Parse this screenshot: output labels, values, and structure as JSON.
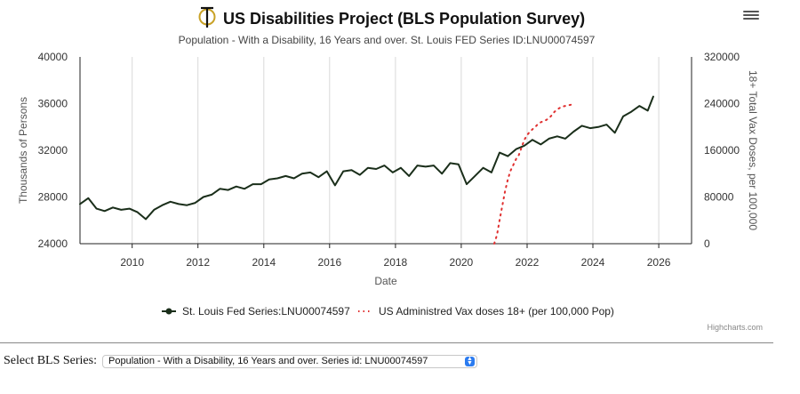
{
  "chart_data": {
    "type": "line",
    "title": "US Disabilities Project (BLS Population Survey)",
    "subtitle": "Population - With a Disability, 16 Years and over.  St. Louis FED Series ID:LNU00074597",
    "xlabel": "Date",
    "ylabel_left": "Thousands of Persons",
    "ylabel_right": "18+ Total Vax Doses, per 100,000",
    "xlim": [
      "2008-06-01",
      "2026-12-31"
    ],
    "ylim_left": [
      24000,
      40000
    ],
    "ylim_right": [
      0,
      320000
    ],
    "xticks": [
      "2010",
      "2012",
      "2014",
      "2016",
      "2018",
      "2020",
      "2022",
      "2024",
      "2026"
    ],
    "yticks_left": [
      "24000",
      "28000",
      "32000",
      "36000",
      "40000"
    ],
    "yticks_right": [
      "0",
      "80000",
      "160000",
      "240000",
      "320000"
    ],
    "grid": "vertical-x-only",
    "legend_placement": "bottom",
    "credits": "Highcharts.com",
    "series": [
      {
        "name": "St. Louis Fed Series:LNU00074597",
        "axis": "left",
        "color": "#1a2e1a",
        "marker": "circle",
        "x": [
          "2008-06",
          "2008-09",
          "2008-12",
          "2009-03",
          "2009-06",
          "2009-09",
          "2009-12",
          "2010-03",
          "2010-06",
          "2010-09",
          "2010-12",
          "2011-03",
          "2011-06",
          "2011-09",
          "2011-12",
          "2012-03",
          "2012-06",
          "2012-09",
          "2012-12",
          "2013-03",
          "2013-06",
          "2013-09",
          "2013-12",
          "2014-03",
          "2014-06",
          "2014-09",
          "2014-12",
          "2015-03",
          "2015-06",
          "2015-09",
          "2015-12",
          "2016-03",
          "2016-06",
          "2016-09",
          "2016-12",
          "2017-03",
          "2017-06",
          "2017-09",
          "2017-12",
          "2018-03",
          "2018-06",
          "2018-09",
          "2018-12",
          "2019-03",
          "2019-06",
          "2019-09",
          "2019-12",
          "2020-03",
          "2020-06",
          "2020-09",
          "2020-12",
          "2021-03",
          "2021-06",
          "2021-09",
          "2021-12",
          "2022-03",
          "2022-06",
          "2022-09",
          "2022-12",
          "2023-03",
          "2023-06",
          "2023-09",
          "2023-12",
          "2024-03",
          "2024-06",
          "2024-09",
          "2024-12",
          "2025-03",
          "2025-06",
          "2025-09",
          "2025-11"
        ],
        "values": [
          27400,
          27900,
          27000,
          26800,
          27100,
          26900,
          27000,
          26700,
          26100,
          26900,
          27300,
          27600,
          27400,
          27300,
          27500,
          28000,
          28200,
          28700,
          28600,
          28900,
          28700,
          29100,
          29100,
          29500,
          29600,
          29800,
          29600,
          30000,
          30100,
          29700,
          30200,
          29000,
          30200,
          30300,
          29900,
          30500,
          30400,
          30700,
          30100,
          30500,
          29800,
          30700,
          30600,
          30700,
          30000,
          30900,
          30800,
          29100,
          29800,
          30500,
          30100,
          31800,
          31500,
          32100,
          32400,
          32900,
          32500,
          33000,
          33200,
          33000,
          33600,
          34100,
          33900,
          34000,
          34200,
          33500,
          34900,
          35300,
          35800,
          35400,
          36600
        ]
      },
      {
        "name": "US Administred Vax doses 18+ (per 100,000 Pop)",
        "axis": "right",
        "color": "#e03030",
        "style": "dotted",
        "x": [
          "2021-01",
          "2021-02",
          "2021-03",
          "2021-04",
          "2021-05",
          "2021-06",
          "2021-07",
          "2021-08",
          "2021-09",
          "2021-10",
          "2021-11",
          "2021-12",
          "2022-01",
          "2022-02",
          "2022-03",
          "2022-04",
          "2022-05",
          "2022-06",
          "2022-07",
          "2022-08",
          "2022-09",
          "2022-10",
          "2022-11",
          "2022-12",
          "2023-01",
          "2023-02",
          "2023-03",
          "2023-04",
          "2023-05"
        ],
        "values": [
          0,
          15000,
          40000,
          65000,
          90000,
          110000,
          125000,
          135000,
          145000,
          152000,
          165000,
          178000,
          186000,
          192000,
          196000,
          200000,
          205000,
          208000,
          210000,
          212000,
          215000,
          220000,
          226000,
          230000,
          233000,
          235000,
          236000,
          237000,
          238000
        ]
      }
    ]
  },
  "controls": {
    "select_label": "Select BLS Series:",
    "select_value": "Population - With a Disability, 16 Years and over. Series id: LNU00074597"
  },
  "icons": {
    "logo": "tau-phi-logo-icon",
    "menu": "hamburger-menu-icon",
    "select_arrow": "updown-chevron-icon"
  }
}
